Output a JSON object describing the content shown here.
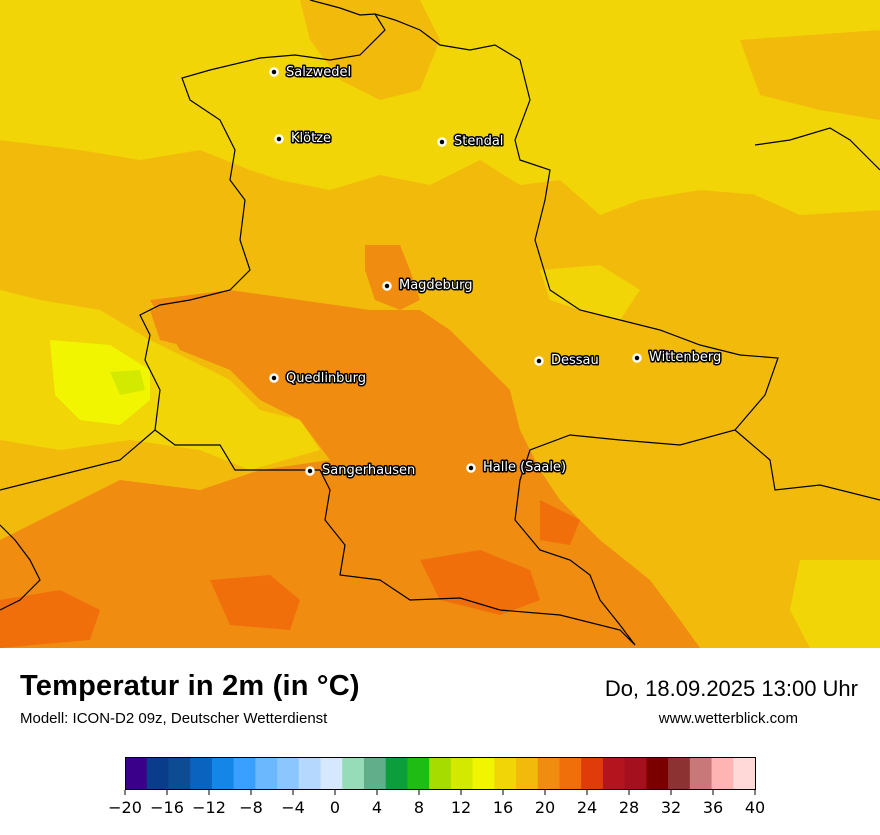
{
  "map": {
    "cities": [
      {
        "name": "Salzwedel"
      },
      {
        "name": "Klötze"
      },
      {
        "name": "Stendal"
      },
      {
        "name": "Magdeburg"
      },
      {
        "name": "Dessau"
      },
      {
        "name": "Wittenberg"
      },
      {
        "name": "Quedlinburg"
      },
      {
        "name": "Sangerhausen"
      },
      {
        "name": "Halle (Saale)"
      }
    ]
  },
  "header": {
    "title": "Temperatur in 2m (in °C)",
    "subtitle": "Modell: ICON-D2 09z, Deutscher Wetterdienst",
    "datetime": "Do, 18.09.2025 13:00 Uhr",
    "website": "www.wetterblick.com"
  },
  "legend": {
    "min": -20,
    "max": 40,
    "step": 2,
    "colors": [
      "#3a0089",
      "#0a3c8c",
      "#0d4b93",
      "#0b63c0",
      "#1486e8",
      "#3aa0ff",
      "#6cb8ff",
      "#8cc6ff",
      "#b4d8ff",
      "#d6e8ff",
      "#96dcb8",
      "#60ae8a",
      "#0c9e3c",
      "#1fbc14",
      "#a6dc00",
      "#d3ea00",
      "#f2f500",
      "#f2d506",
      "#f2bb0c",
      "#f08c10",
      "#f06f0a",
      "#e03c0a",
      "#b4141e",
      "#a5101e",
      "#7a0000",
      "#8c3232",
      "#c87878",
      "#ffb4b4",
      "#ffd8d8"
    ],
    "tick_labels": [
      "−20",
      "−16",
      "−12",
      "−8",
      "−4",
      "0",
      "4",
      "8",
      "12",
      "16",
      "20",
      "24",
      "28",
      "32",
      "36",
      "40"
    ]
  }
}
